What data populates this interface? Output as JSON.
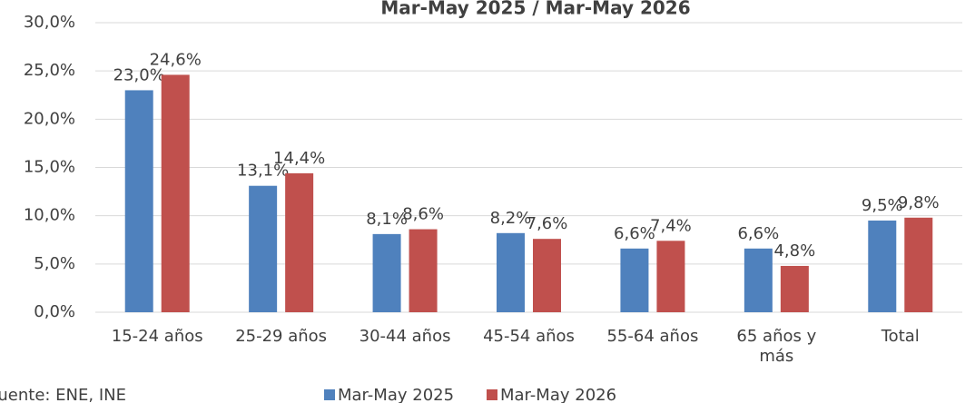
{
  "chart_data": {
    "type": "bar",
    "title": "Mar-May 2025 / Mar-May 2026",
    "source": "Fuente: ENE, INE",
    "categories": [
      "15-24 años",
      "25-29 años",
      "30-44 años",
      "45-54 años",
      "55-64 años",
      "65 años y más",
      "Total"
    ],
    "series": [
      {
        "name": "Mar-May 2025",
        "color": "#4f81bd",
        "values": [
          23.0,
          13.1,
          8.1,
          8.2,
          6.6,
          6.6,
          9.5
        ],
        "value_labels": [
          "23,0%",
          "13,1%",
          "8,1%",
          "8,2%",
          "6,6%",
          "6,6%",
          "9,5%"
        ]
      },
      {
        "name": "Mar-May 2026",
        "color": "#c0504d",
        "values": [
          24.6,
          14.4,
          8.6,
          7.6,
          7.4,
          4.8,
          9.8
        ],
        "value_labels": [
          "24,6%",
          "14,4%",
          "8,6%",
          "7,6%",
          "7,4%",
          "4,8%",
          "9,8%"
        ]
      }
    ],
    "ylim": [
      0,
      30
    ],
    "yticks": [
      {
        "value": 0,
        "label": "0,0%"
      },
      {
        "value": 5,
        "label": "5,0%"
      },
      {
        "value": 10,
        "label": "10,0%"
      },
      {
        "value": 15,
        "label": "15,0%"
      },
      {
        "value": 20,
        "label": "20,0%"
      },
      {
        "value": 25,
        "label": "25,0%"
      },
      {
        "value": 30,
        "label": "30,0%"
      }
    ],
    "grid": true,
    "legend": "bottom"
  }
}
